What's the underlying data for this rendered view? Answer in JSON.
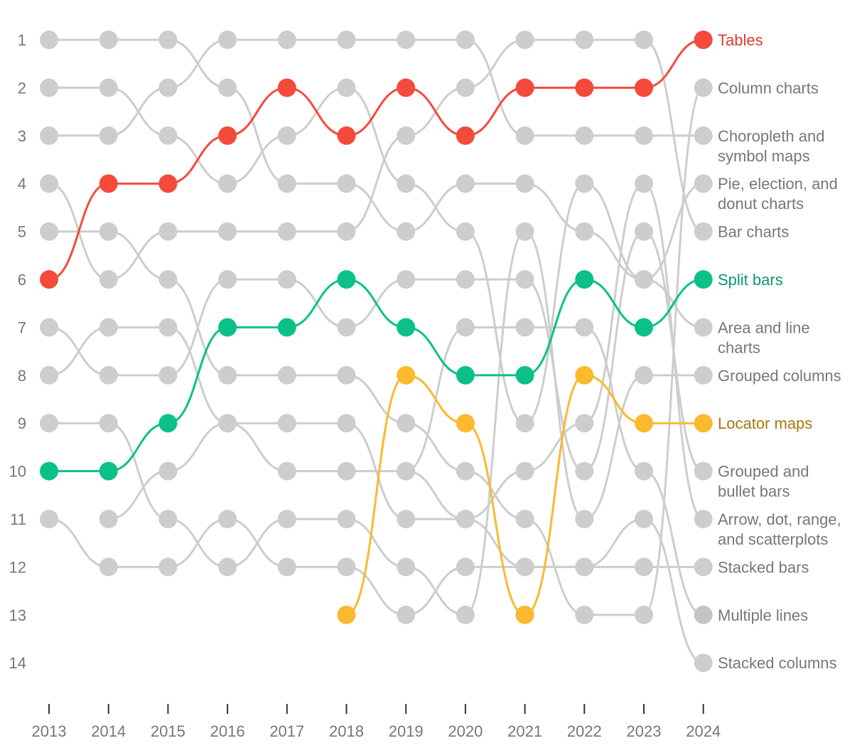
{
  "chart_data": {
    "type": "line",
    "title": "",
    "xlabel": "",
    "ylabel": "",
    "x": [
      "2013",
      "2014",
      "2015",
      "2016",
      "2017",
      "2018",
      "2019",
      "2020",
      "2021",
      "2022",
      "2023",
      "2024"
    ],
    "y_ticks": [
      "1",
      "2",
      "3",
      "4",
      "5",
      "6",
      "7",
      "8",
      "9",
      "10",
      "11",
      "12",
      "13",
      "14"
    ],
    "ylim": [
      1,
      14
    ],
    "highlight_colors": {
      "Tables": "#f44a3c",
      "Split bars": "#0cc187",
      "Locator maps": "#fbb92e"
    },
    "label_colors": {
      "Tables": "#de3a2c",
      "Split bars": "#0a9a6e",
      "Locator maps": "#a8780a",
      "default": "#777777"
    },
    "gray_color": "#cdcdcd",
    "gray_dot_multiple_lines": "#c4c4c4",
    "series": [
      {
        "name": "Tables",
        "values": [
          6,
          4,
          4,
          3,
          2,
          3,
          2,
          3,
          2,
          2,
          2,
          1
        ],
        "highlight": true
      },
      {
        "name": "Split bars",
        "values": [
          10,
          10,
          9,
          7,
          7,
          6,
          7,
          8,
          8,
          6,
          7,
          6
        ],
        "highlight": true
      },
      {
        "name": "Locator maps",
        "values": [
          null,
          null,
          null,
          null,
          null,
          13,
          8,
          9,
          13,
          8,
          9,
          9
        ],
        "highlight": true
      },
      {
        "name": "Area and line charts",
        "label_lines": [
          "Area and line",
          "charts"
        ],
        "values": [
          1,
          1,
          1,
          2,
          4,
          4,
          5,
          4,
          4,
          5,
          6,
          7
        ]
      },
      {
        "name": "Choropleth and symbol maps",
        "label_lines": [
          "Choropleth and",
          "symbol maps"
        ],
        "values": [
          3,
          3,
          2,
          1,
          1,
          1,
          1,
          1,
          3,
          3,
          3,
          3
        ]
      },
      {
        "name": "Pie, election, and donut charts",
        "label_lines": [
          "Pie, election, and",
          "donut charts"
        ],
        "values": [
          2,
          2,
          3,
          4,
          3,
          2,
          4,
          5,
          9,
          4,
          6,
          4
        ]
      },
      {
        "name": "Bar charts",
        "values": [
          4,
          6,
          5,
          5,
          5,
          5,
          3,
          2,
          1,
          1,
          1,
          5
        ]
      },
      {
        "name": "Column charts",
        "values": [
          5,
          5,
          6,
          8,
          8,
          8,
          9,
          10,
          11,
          13,
          13,
          2
        ]
      },
      {
        "name": "Grouped columns",
        "values": [
          9,
          9,
          11,
          12,
          11,
          11,
          12,
          13,
          5,
          11,
          8,
          8
        ]
      },
      {
        "name": "Grouped and bullet bars",
        "label_lines": [
          "Grouped and",
          "bullet bars"
        ],
        "values": [
          7,
          8,
          8,
          6,
          6,
          7,
          6,
          6,
          6,
          10,
          5,
          10
        ]
      },
      {
        "name": "Arrow, dot, range, and scatterplots",
        "label_lines": [
          "Arrow, dot, range,",
          "and scatterplots"
        ],
        "values": [
          8,
          7,
          7,
          9,
          9,
          9,
          11,
          11,
          10,
          9,
          4,
          11
        ]
      },
      {
        "name": "Stacked bars",
        "values": [
          11,
          12,
          12,
          11,
          12,
          12,
          13,
          12,
          12,
          12,
          12,
          12
        ]
      },
      {
        "name": "Multiple lines",
        "values": [
          null,
          null,
          null,
          null,
          null,
          null,
          10,
          7,
          7,
          7,
          10,
          13
        ]
      },
      {
        "name": "Stacked columns",
        "values": [
          null,
          11,
          10,
          9,
          10,
          10,
          10,
          11,
          12,
          12,
          11,
          14
        ]
      }
    ]
  }
}
